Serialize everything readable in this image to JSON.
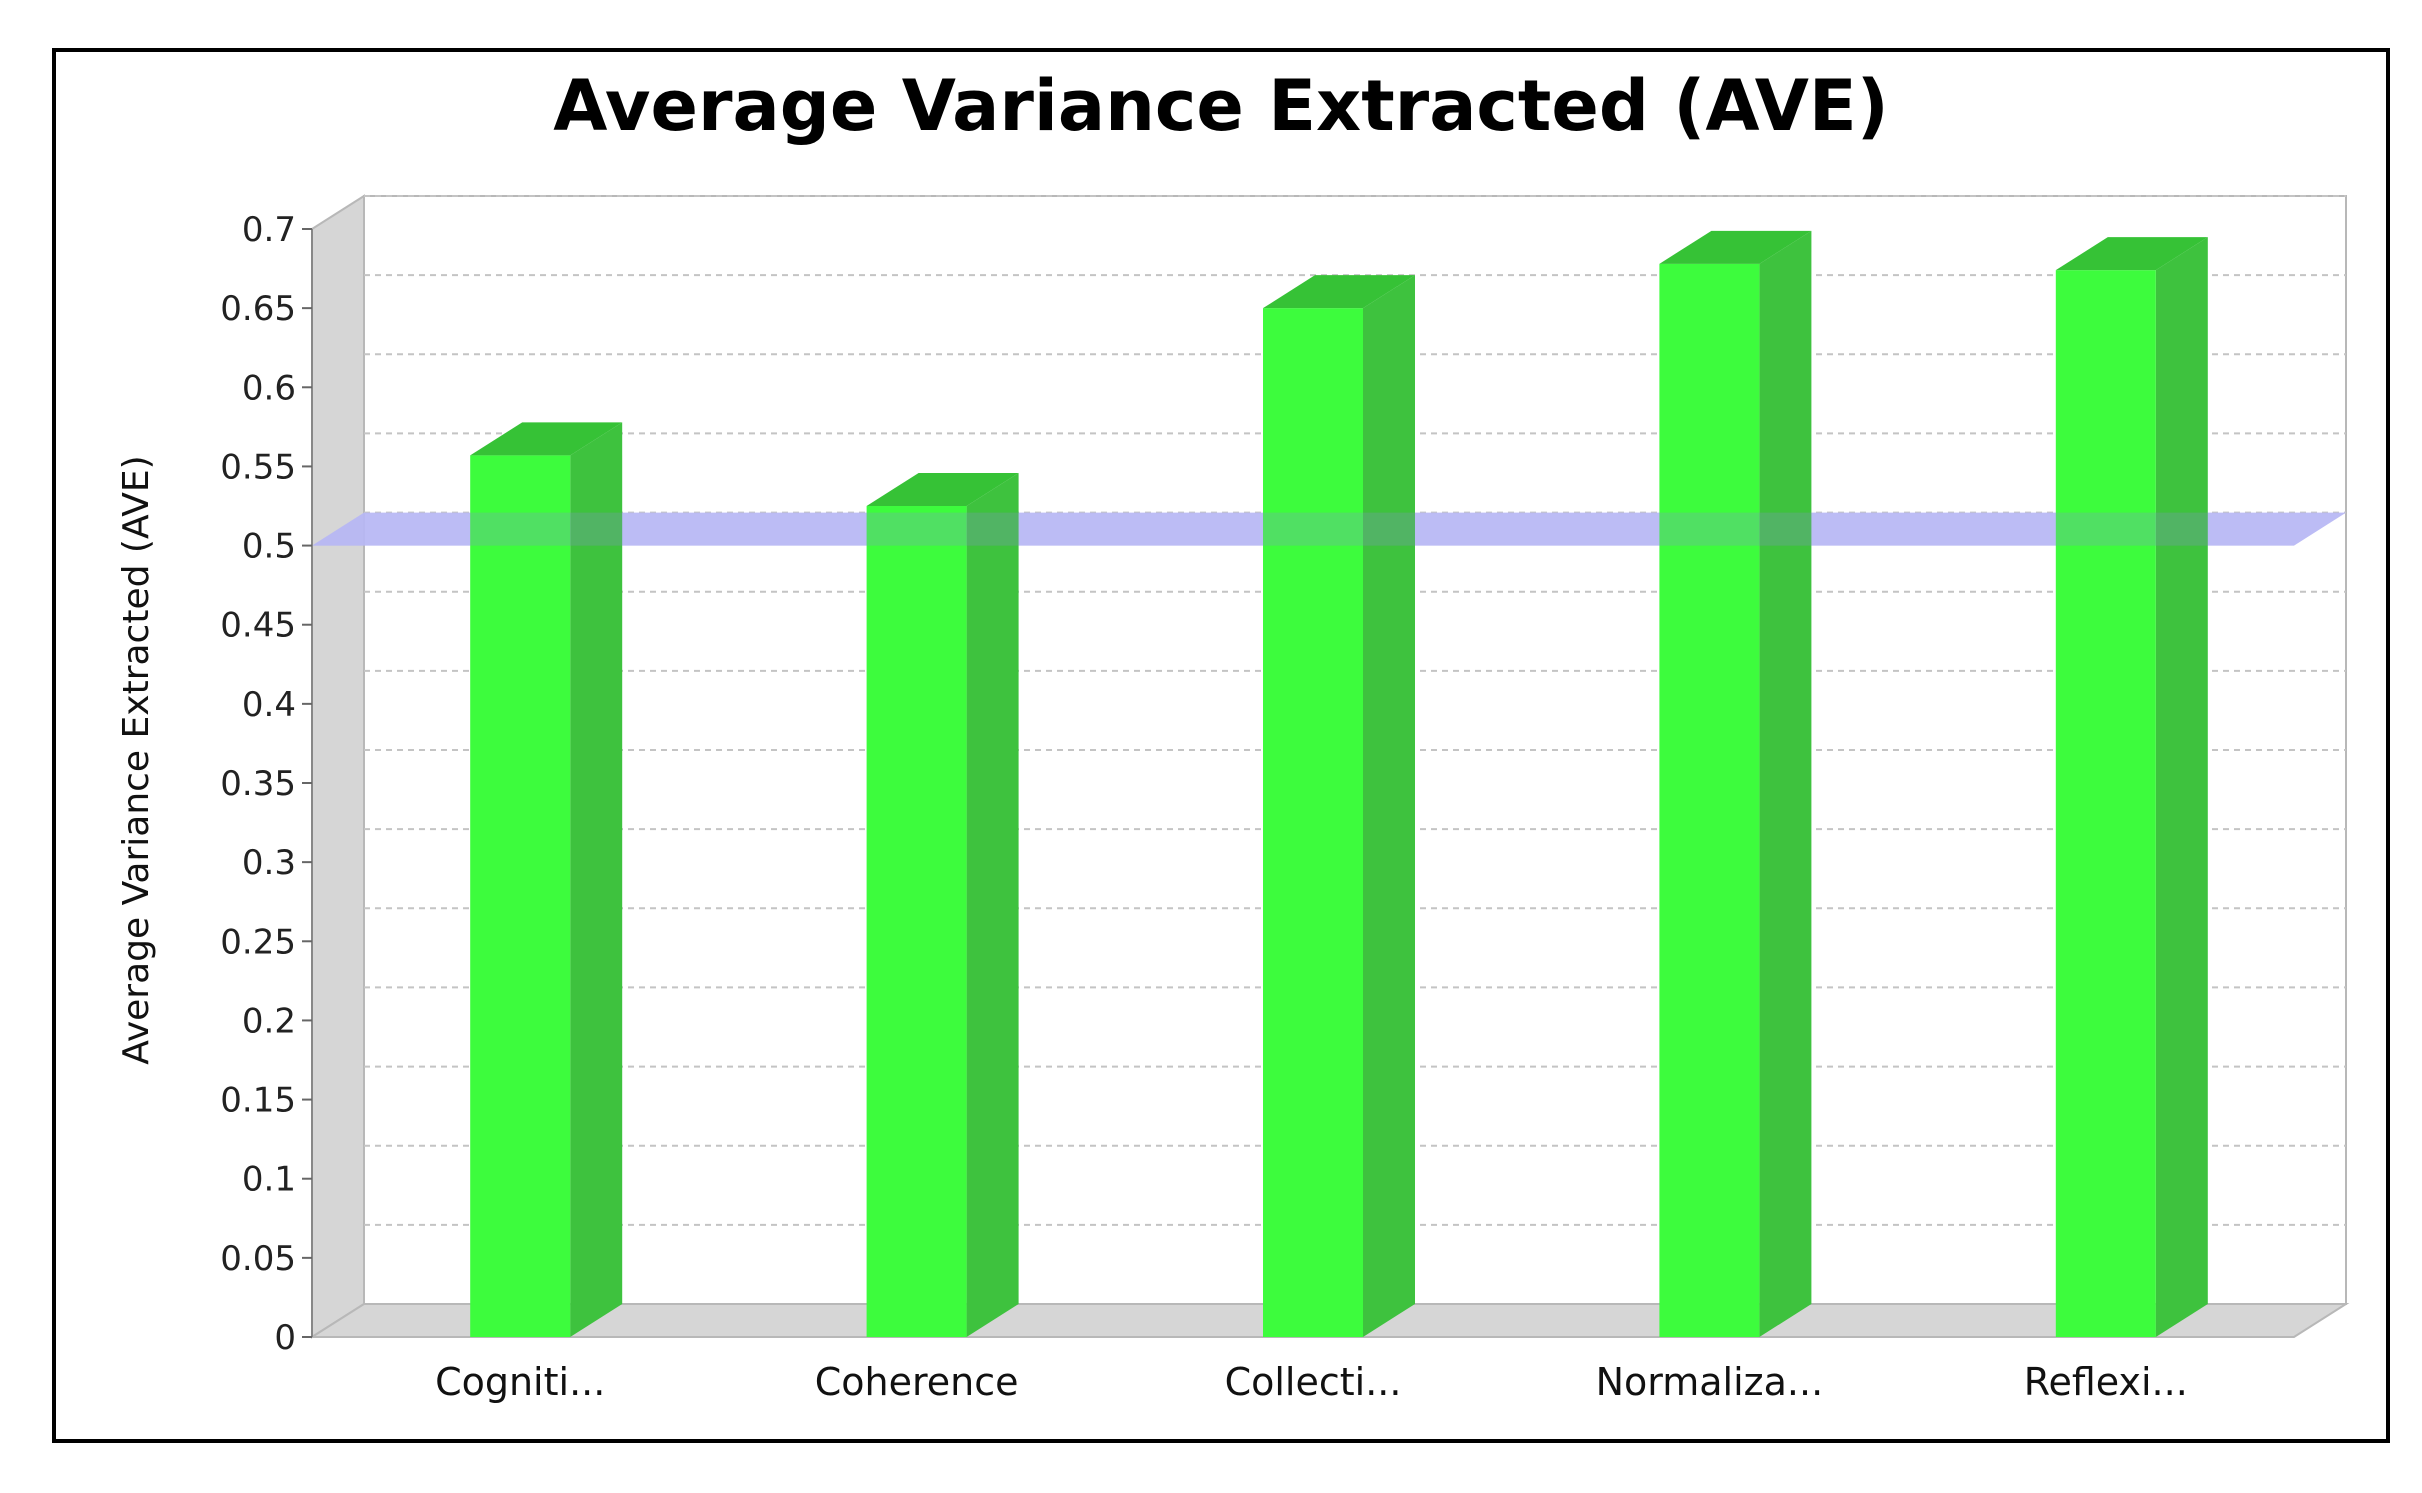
{
  "chart_data": {
    "type": "bar",
    "title": "Average Variance Extracted (AVE)",
    "xlabel": "",
    "ylabel": "Average Variance Extracted (AVE)",
    "ylim": [
      0,
      0.7
    ],
    "yticks": [
      "0",
      "0.05",
      "0.1",
      "0.15",
      "0.2",
      "0.25",
      "0.3",
      "0.35",
      "0.4",
      "0.45",
      "0.5",
      "0.55",
      "0.6",
      "0.65",
      "0.7"
    ],
    "categories": [
      "Cogniti...",
      "Coherence",
      "Collecti...",
      "Normaliza...",
      "Reflexi..."
    ],
    "values": [
      0.557,
      0.525,
      0.65,
      0.678,
      0.674
    ],
    "threshold": 0.5,
    "grid": true,
    "bar_color": "#3dfc3d",
    "bar_side_color": "#3ec23e",
    "bar_top_color": "#36c236",
    "threshold_color": "#c8c8ff"
  }
}
